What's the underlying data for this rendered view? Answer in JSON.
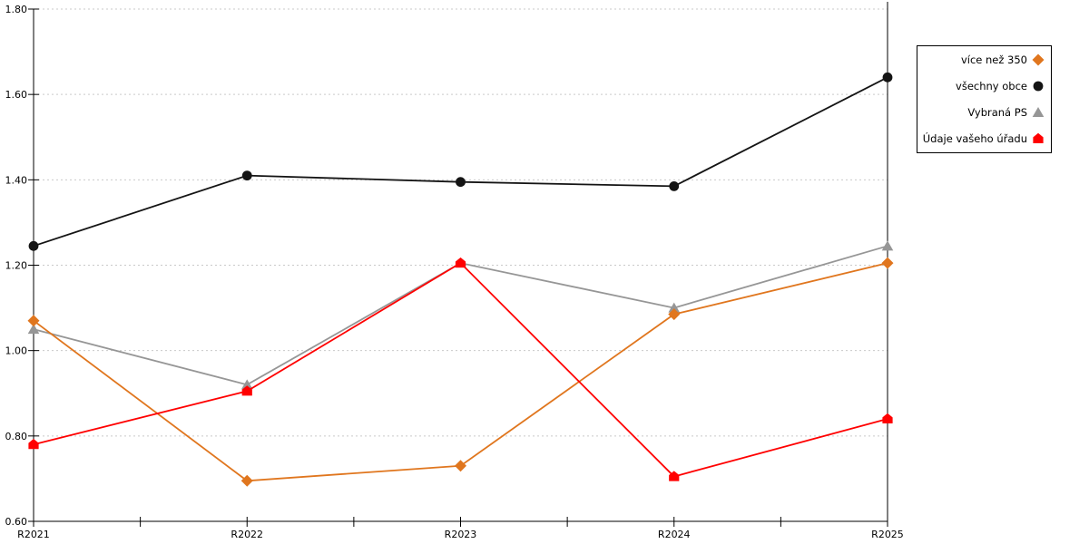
{
  "chart_data": {
    "type": "line",
    "categories": [
      "R2021",
      "R2022",
      "R2023",
      "R2024",
      "R2025"
    ],
    "series": [
      {
        "name": "více než 350",
        "marker": "diamond",
        "color": "#E0761E",
        "values": [
          1.07,
          0.695,
          0.73,
          1.085,
          1.205
        ]
      },
      {
        "name": "všechny obce",
        "marker": "circle",
        "color": "#141414",
        "values": [
          1.245,
          1.41,
          1.395,
          1.385,
          1.64
        ]
      },
      {
        "name": "Vybraná PS",
        "marker": "triangle",
        "color": "#969696",
        "values": [
          1.05,
          0.92,
          1.205,
          1.1,
          1.245
        ]
      },
      {
        "name": "Údaje vašeho úřadu",
        "marker": "pentagon",
        "color": "#FF0000",
        "values": [
          0.78,
          0.905,
          1.205,
          0.705,
          0.84
        ]
      }
    ],
    "draw_order": [
      1,
      2,
      0,
      3
    ],
    "ylim": [
      0.6,
      1.8
    ],
    "ytick_step": 0.2,
    "ytick_labels": [
      "0.60",
      "0.80",
      "1.00",
      "1.20",
      "1.40",
      "1.60",
      "1.80"
    ],
    "grid": "horizontal-dashed",
    "legend_position": "right",
    "axis_color": "#000000",
    "gridline_color": "#C9C9C9",
    "background": "#FFFFFF"
  }
}
